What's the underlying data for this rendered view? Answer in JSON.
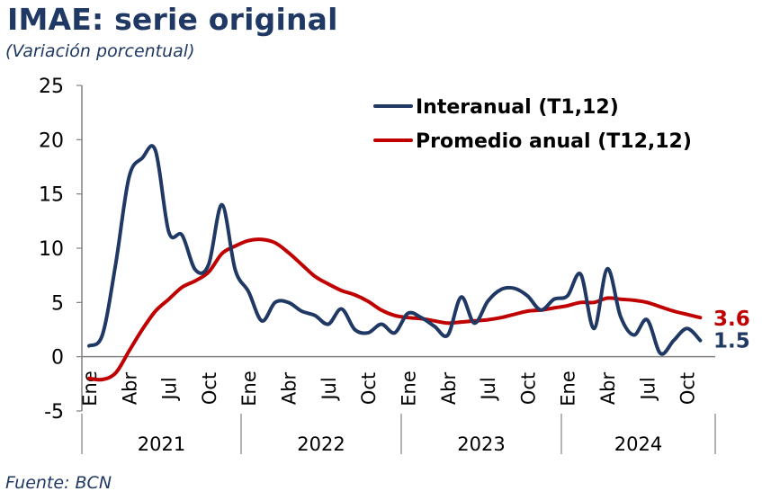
{
  "header": {
    "title": "IMAE: serie original",
    "subtitle": "(Variación porcentual)"
  },
  "footer": {
    "source": "Fuente: BCN"
  },
  "colors": {
    "interanual": "#1f3864",
    "promedio": "#c00000",
    "axis": "#808080",
    "text": "#000000"
  },
  "chart_data": {
    "type": "line",
    "title": "",
    "xlabel": "",
    "ylabel": "",
    "ylim": [
      -5,
      25
    ],
    "yticks": [
      -5,
      0,
      5,
      10,
      15,
      20,
      25
    ],
    "grid": false,
    "legend_position": "top-right",
    "month_tick_labels": [
      "Ene",
      "Abr",
      "Jul",
      "Oct",
      "Ene",
      "Abr",
      "Jul",
      "Oct",
      "Ene",
      "Abr",
      "Jul",
      "Oct",
      "Ene",
      "Abr",
      "Jul",
      "Oct"
    ],
    "year_labels": [
      "2021",
      "2022",
      "2023",
      "2024"
    ],
    "x": [
      "2021-01",
      "2021-02",
      "2021-03",
      "2021-04",
      "2021-05",
      "2021-06",
      "2021-07",
      "2021-08",
      "2021-09",
      "2021-10",
      "2021-11",
      "2021-12",
      "2022-01",
      "2022-02",
      "2022-03",
      "2022-04",
      "2022-05",
      "2022-06",
      "2022-07",
      "2022-08",
      "2022-09",
      "2022-10",
      "2022-11",
      "2022-12",
      "2023-01",
      "2023-02",
      "2023-03",
      "2023-04",
      "2023-05",
      "2023-06",
      "2023-07",
      "2023-08",
      "2023-09",
      "2023-10",
      "2023-11",
      "2023-12",
      "2024-01",
      "2024-02",
      "2024-03",
      "2024-04",
      "2024-05",
      "2024-06",
      "2024-07",
      "2024-08",
      "2024-09",
      "2024-10",
      "2024-11"
    ],
    "series": [
      {
        "name": "Interanual (T1,12)",
        "color": "#1f3864",
        "end_label": "1.5",
        "values": [
          1.0,
          2.0,
          8.5,
          16.5,
          18.3,
          19.0,
          11.5,
          11.2,
          8.0,
          8.5,
          14.0,
          8.0,
          6.0,
          3.3,
          5.0,
          5.0,
          4.2,
          3.8,
          3.0,
          4.4,
          2.5,
          2.2,
          3.0,
          2.2,
          4.0,
          3.6,
          2.8,
          2.0,
          5.5,
          3.1,
          5.1,
          6.2,
          6.3,
          5.6,
          4.3,
          5.3,
          5.6,
          7.6,
          2.6,
          8.1,
          3.7,
          2.0,
          3.4,
          0.3,
          1.5,
          2.6,
          1.5
        ]
      },
      {
        "name": "Promedio anual (T12,12)",
        "color": "#c00000",
        "end_label": "3.6",
        "values": [
          -2.0,
          -2.1,
          -1.5,
          0.5,
          2.5,
          4.2,
          5.3,
          6.4,
          7.0,
          7.8,
          9.5,
          10.2,
          10.7,
          10.8,
          10.5,
          9.6,
          8.5,
          7.4,
          6.7,
          6.1,
          5.7,
          5.1,
          4.3,
          3.8,
          3.6,
          3.5,
          3.3,
          3.1,
          3.2,
          3.3,
          3.4,
          3.6,
          3.9,
          4.2,
          4.3,
          4.5,
          4.7,
          5.0,
          5.0,
          5.4,
          5.3,
          5.2,
          5.0,
          4.6,
          4.2,
          3.9,
          3.6
        ]
      }
    ]
  }
}
